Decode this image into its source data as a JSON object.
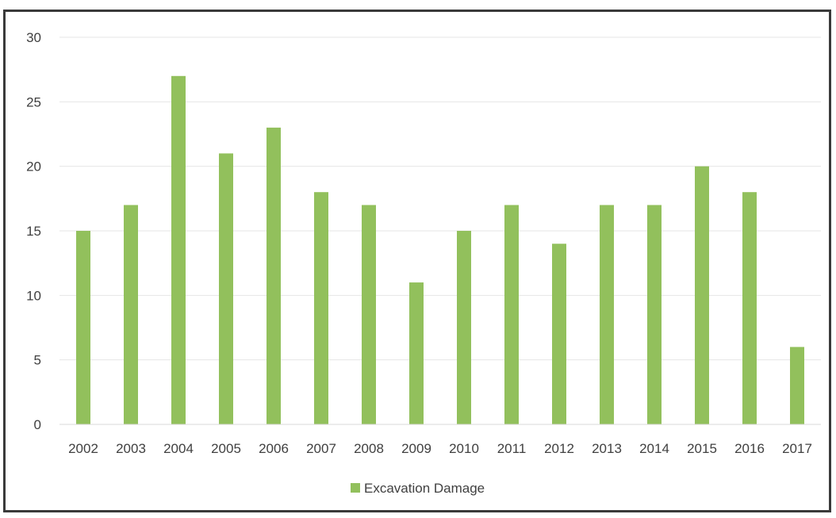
{
  "chart_data": {
    "type": "bar",
    "title": "",
    "xlabel": "",
    "ylabel": "",
    "categories": [
      "2002",
      "2003",
      "2004",
      "2005",
      "2006",
      "2007",
      "2008",
      "2009",
      "2010",
      "2011",
      "2012",
      "2013",
      "2014",
      "2015",
      "2016",
      "2017"
    ],
    "series": [
      {
        "name": "Excavation Damage",
        "values": [
          15,
          17,
          27,
          21,
          23,
          18,
          17,
          11,
          15,
          17,
          14,
          17,
          17,
          20,
          18,
          6
        ]
      }
    ],
    "ylim": [
      0,
      30
    ],
    "yticks": [
      0,
      5,
      10,
      15,
      20,
      25,
      30
    ],
    "grid": true,
    "legend": "bottom",
    "bar_color": "#92c05c",
    "grid_color": "#e6e6e6",
    "frame_color": "#3a3a3a"
  }
}
